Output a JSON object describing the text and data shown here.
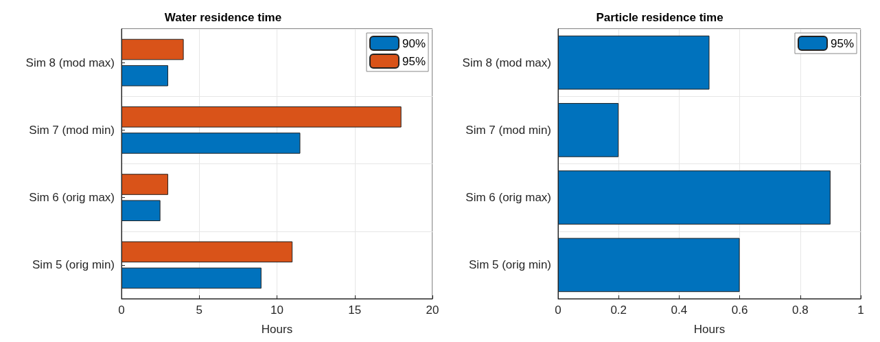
{
  "chart_data": [
    {
      "type": "bar",
      "orientation": "horizontal",
      "title": "Water residence time",
      "xlabel": "Hours",
      "categories": [
        "Sim 8 (mod max)",
        "Sim 7 (mod min)",
        "Sim 6 (orig max)",
        "Sim 5 (orig min)"
      ],
      "series": [
        {
          "name": "90%",
          "color": "#0072bd",
          "values": [
            3,
            11.5,
            2.5,
            9
          ]
        },
        {
          "name": "95%",
          "color": "#d95319",
          "values": [
            4,
            18,
            3,
            11
          ]
        }
      ],
      "xlim": [
        0,
        20
      ],
      "xticks": [
        0,
        5,
        10,
        15,
        20
      ],
      "grid": true,
      "legend": "top right"
    },
    {
      "type": "bar",
      "orientation": "horizontal",
      "title": "Particle residence time",
      "xlabel": "Hours",
      "categories": [
        "Sim 8 (mod max)",
        "Sim 7 (mod min)",
        "Sim 6 (orig max)",
        "Sim 5 (orig min)"
      ],
      "series": [
        {
          "name": "95%",
          "color": "#0072bd",
          "values": [
            0.5,
            0.2,
            0.9,
            0.6
          ]
        }
      ],
      "xlim": [
        0,
        1
      ],
      "xticks": [
        0,
        0.2,
        0.4,
        0.6,
        0.8,
        1
      ],
      "grid": true,
      "legend": "top right"
    }
  ]
}
